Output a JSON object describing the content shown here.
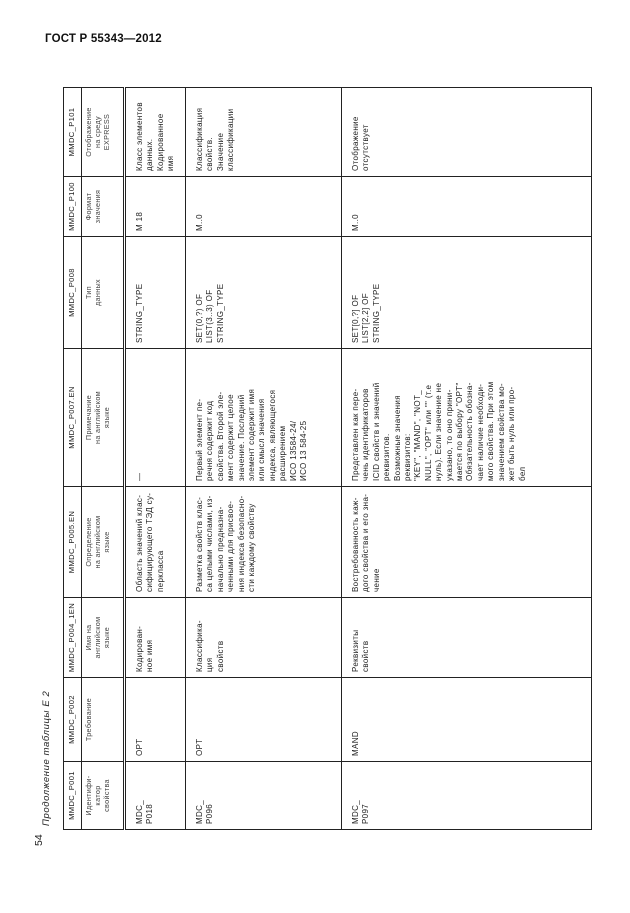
{
  "header": {
    "title": "ГОСТ Р 55343—2012",
    "page_number": "54",
    "caption": "Продолжение таблицы Е 2"
  },
  "table": {
    "codes": [
      "MMDC_P001",
      "MMDC_P002",
      "MMDC_P004_1EN",
      "MMDC_P005.EN",
      "MMDC_P007.EN",
      "MMDC_P008",
      "MMDC_P100",
      "MMDC_P101"
    ],
    "names": [
      "Идентифи-\nкатор\nсвойства",
      "Требование",
      "Имя на\nанглийском\nязыке",
      "Определение\nна английском\nязыке",
      "Примечание\nна английском\nязыке",
      "Тип\nданных",
      "Формат\nзначения",
      "Отображение\nна среду\nEXPRESS"
    ],
    "rows": [
      [
        "MDC_\nP018",
        "OPT",
        "Кодирован-\nное имя",
        "Область значений клас-\nсифицирующего ТЭД су-\nперкласса",
        "—",
        "STRING_TYPE",
        "M 18",
        "Класс элементов\nданных.\nКодированное\nимя"
      ],
      [
        "MDC_\nP096",
        "OPT",
        "Классифика-\nция\nсвойств",
        "Разметка свойств клас-\nса целыми числами, из-\nначально  предназна-\nченными для присвое-\nния индекса безопасно-\nсти каждому свойству",
        "Первый  элемент  пе-\nречня  содержит  код\nсвойства.  Второй  эле-\nмент  содержит  целое\nзначение.   Последний\nэлемент содержит имя\nили  смысл  значения\nиндекса,  являющегося\nрасширением\nИСО 13584-24/\nИСО 13 584-25",
        "SET(0,?) OF\nLIST(3..3) OF\nSTRING_TYPE",
        "M..0",
        "Классификация\nсвойств.\nЗначение\nклассификации"
      ],
      [
        "MDC_\nP097",
        "MAND",
        "Реквизиты\nсвойств",
        "Востребованность каж-\nдого свойства и его зна-\nчение",
        "Представлен как пере-\nчень идентификаторов\nICID свойств и значений\nреквизитов.\nВозможные     значения\nреквизитов:\n\"KEY\", \"MAND\", \"NOT_\nNULL\", \"OPT\" или \"\" (т.е\nнуль). Если значение не\nуказано,  то  оно  прини-\nмается по выбору \"OPT\"\nОбязательность обозна-\nчает наличие необходи-\nмого свойства. При этом\nзначением свойства мо-\nжет быть нуль или про-\nбел",
        "SET[0,?] OF\nLIST[2,2] OF\nSTRING_TYPE",
        "M..0",
        "Отображение\nотсутствует"
      ]
    ]
  }
}
